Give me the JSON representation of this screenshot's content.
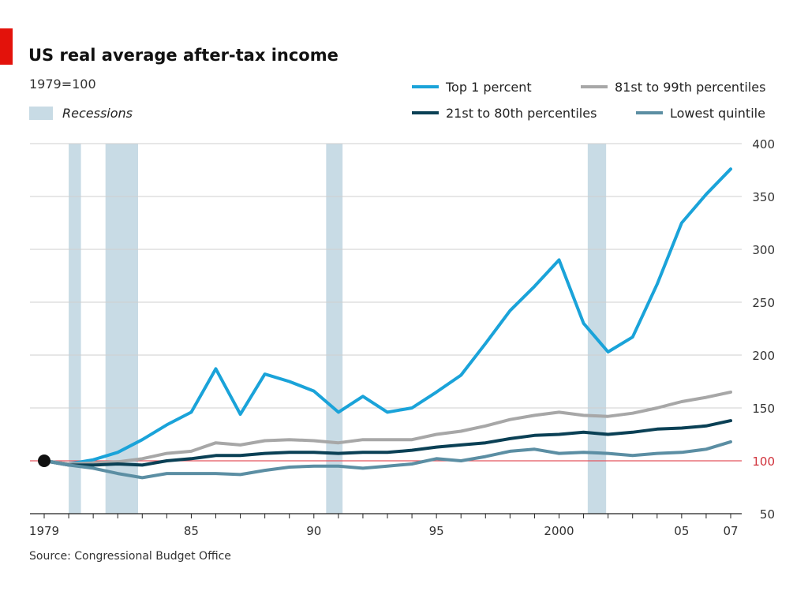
{
  "header": {
    "title": "US real average after-tax income",
    "subtitle": "1979=100",
    "source": "Source: Congressional Budget Office"
  },
  "colors": {
    "brand_tag": "#e3120b",
    "recession": "#c8dbe5",
    "grid": "#cfcfcf",
    "baseline": "#e3565f",
    "baseline_label": "#d0323c",
    "axis": "#222222",
    "marker": "#111111"
  },
  "chart_data": {
    "type": "line",
    "title": "US real average after-tax income",
    "subtitle": "1979=100",
    "xlabel": "",
    "ylabel": "",
    "xlim": [
      1978.5,
      2007.5
    ],
    "ylim": [
      50,
      400
    ],
    "grid": true,
    "y_axis_side": "right",
    "legend_position": "top-right",
    "x": [
      1979,
      1980,
      1981,
      1982,
      1983,
      1984,
      1985,
      1986,
      1987,
      1988,
      1989,
      1990,
      1991,
      1992,
      1993,
      1994,
      1995,
      1996,
      1997,
      1998,
      1999,
      2000,
      2001,
      2002,
      2003,
      2004,
      2005,
      2006,
      2007
    ],
    "x_ticks": [
      {
        "value": 1979,
        "label": "1979"
      },
      {
        "value": 1985,
        "label": "85"
      },
      {
        "value": 1990,
        "label": "90"
      },
      {
        "value": 1995,
        "label": "95"
      },
      {
        "value": 2000,
        "label": "2000"
      },
      {
        "value": 2005,
        "label": "05"
      },
      {
        "value": 2007,
        "label": "07"
      }
    ],
    "y_ticks": [
      {
        "value": 50,
        "label": "50"
      },
      {
        "value": 100,
        "label": "100"
      },
      {
        "value": 150,
        "label": "150"
      },
      {
        "value": 200,
        "label": "200"
      },
      {
        "value": 250,
        "label": "250"
      },
      {
        "value": 300,
        "label": "300"
      },
      {
        "value": 350,
        "label": "350"
      },
      {
        "value": 400,
        "label": "400"
      }
    ],
    "baseline": 100,
    "start_marker": {
      "x": 1979,
      "y": 100
    },
    "recessions_label": "Recessions",
    "recessions": [
      {
        "start": 1980.0,
        "end": 1980.5
      },
      {
        "start": 1981.5,
        "end": 1982.83
      },
      {
        "start": 1990.5,
        "end": 1991.17
      },
      {
        "start": 2001.17,
        "end": 2001.92
      }
    ],
    "series": [
      {
        "name": "Top 1 percent",
        "color": "#1aa3d9",
        "width": 4,
        "values": [
          100,
          97,
          101,
          108,
          120,
          134,
          146,
          187,
          144,
          182,
          175,
          166,
          146,
          161,
          146,
          150,
          165,
          181,
          211,
          242,
          265,
          290,
          230,
          203,
          217,
          267,
          325,
          352,
          376
        ]
      },
      {
        "name": "81st to 99th percentiles",
        "color": "#a7a7a7",
        "width": 4,
        "values": [
          100,
          97,
          98,
          99,
          102,
          107,
          109,
          117,
          115,
          119,
          120,
          119,
          117,
          120,
          120,
          120,
          125,
          128,
          133,
          139,
          143,
          146,
          143,
          142,
          145,
          150,
          156,
          160,
          165
        ]
      },
      {
        "name": "21st to 80th percentiles",
        "color": "#0a4055",
        "width": 4,
        "values": [
          100,
          96,
          96,
          97,
          96,
          100,
          102,
          105,
          105,
          107,
          108,
          108,
          107,
          108,
          108,
          110,
          113,
          115,
          117,
          121,
          124,
          125,
          127,
          125,
          127,
          130,
          131,
          133,
          138
        ]
      },
      {
        "name": "Lowest quintile",
        "color": "#5b8ea3",
        "width": 4,
        "values": [
          100,
          96,
          93,
          88,
          84,
          88,
          88,
          88,
          87,
          91,
          94,
          95,
          95,
          93,
          95,
          97,
          102,
          100,
          104,
          109,
          111,
          107,
          108,
          107,
          105,
          107,
          108,
          111,
          118
        ]
      }
    ]
  }
}
